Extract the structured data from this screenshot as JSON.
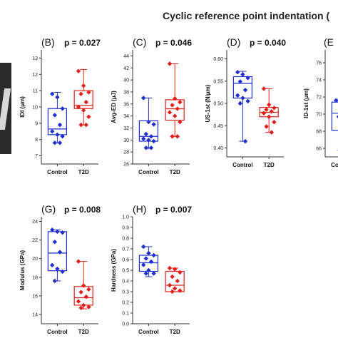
{
  "figure_title": "Cyclic reference point indentation (",
  "colors": {
    "control": "#1f2fd0",
    "t2d": "#e0201c",
    "axis": "#333333"
  },
  "chart_data": [
    {
      "panel": "(B)",
      "pvalue": "p = 0.027",
      "type": "box",
      "ylabel": "IDI (μm)",
      "ylim": [
        6.5,
        13.5
      ],
      "yticks": [
        7,
        8,
        9,
        10,
        11,
        12,
        13
      ],
      "categories": [
        "Control",
        "T2D"
      ],
      "series": [
        {
          "name": "Control",
          "box": {
            "q1": 8.3,
            "median": 8.65,
            "q3": 9.9,
            "min": 7.8,
            "max": 10.9
          },
          "points": [
            10.8,
            10.6,
            9.9,
            9.5,
            8.9,
            8.5,
            8.3,
            8.2,
            7.8,
            7.8
          ]
        },
        {
          "name": "T2D",
          "box": {
            "q1": 9.9,
            "median": 10.1,
            "q3": 11.0,
            "min": 8.9,
            "max": 12.3
          },
          "points": [
            12.2,
            11.3,
            10.9,
            10.8,
            10.3,
            10.0,
            9.8,
            9.4,
            8.9,
            8.9
          ]
        }
      ]
    },
    {
      "panel": "(C)",
      "pvalue": "p = 0.046",
      "type": "box",
      "ylabel": "Avg-ED (μJ)",
      "ylim": [
        26,
        45
      ],
      "yticks": [
        26,
        28,
        30,
        32,
        34,
        36,
        38,
        40,
        42,
        44
      ],
      "categories": [
        "Control",
        "T2D"
      ],
      "series": [
        {
          "name": "Control",
          "box": {
            "q1": 29.8,
            "median": 30.6,
            "q3": 33.2,
            "min": 28.6,
            "max": 37.0
          },
          "points": [
            37.0,
            33.0,
            32.6,
            31.0,
            30.6,
            30.2,
            30.0,
            29.8,
            28.7,
            28.7
          ]
        },
        {
          "name": "T2D",
          "box": {
            "q1": 33.3,
            "median": 35.2,
            "q3": 36.7,
            "min": 30.6,
            "max": 42.7
          },
          "points": [
            42.7,
            36.9,
            36.3,
            35.8,
            35.2,
            34.6,
            34.0,
            33.0,
            30.6,
            30.6
          ]
        }
      ]
    },
    {
      "panel": "(D)",
      "pvalue": "p = 0.040",
      "type": "box",
      "ylabel": "US-1st (N/μm)",
      "ylim": [
        0.38,
        0.62
      ],
      "yticks": [
        0.4,
        0.45,
        0.5,
        0.55,
        0.6
      ],
      "tickLabels": [
        "0.40",
        "0.45",
        "0.50",
        "0.55",
        "0.60"
      ],
      "categories": [
        "Control",
        "T2D"
      ],
      "series": [
        {
          "name": "Control",
          "box": {
            "q1": 0.512,
            "median": 0.545,
            "q3": 0.56,
            "min": 0.415,
            "max": 0.572
          },
          "points": [
            0.57,
            0.565,
            0.557,
            0.549,
            0.53,
            0.518,
            0.512,
            0.505,
            0.5,
            0.415
          ]
        },
        {
          "name": "T2D",
          "box": {
            "q1": 0.47,
            "median": 0.48,
            "q3": 0.491,
            "min": 0.435,
            "max": 0.533
          },
          "points": [
            0.533,
            0.497,
            0.49,
            0.486,
            0.482,
            0.478,
            0.47,
            0.458,
            0.448,
            0.435
          ]
        }
      ]
    },
    {
      "panel": "(E",
      "type": "box",
      "ylabel": "ID-1st (μm)",
      "ylim": [
        65.0,
        77.5
      ],
      "yticks": [
        66,
        68,
        70,
        72,
        74,
        76
      ],
      "categories": [
        "Control"
      ],
      "series": [
        {
          "name": "Control",
          "box": {
            "q1": 68.1,
            "median": 70.1,
            "q3": 71.4,
            "min": 65.8,
            "max": 71.8
          },
          "points": [
            71.6,
            71.6,
            70.6,
            69.7
          ]
        }
      ]
    },
    {
      "panel": "(G)",
      "pvalue": "p = 0.008",
      "type": "box",
      "ylabel": "Modulus (GPa)",
      "ylim": [
        13,
        24.5
      ],
      "yticks": [
        14,
        16,
        18,
        20,
        22,
        24
      ],
      "categories": [
        "Control",
        "T2D"
      ],
      "series": [
        {
          "name": "Control",
          "box": {
            "q1": 18.7,
            "median": 20.6,
            "q3": 22.9,
            "min": 17.6,
            "max": 23.1
          },
          "points": [
            23.1,
            22.9,
            22.8,
            21.8,
            20.7,
            19.3,
            18.9,
            18.6,
            17.6
          ]
        },
        {
          "name": "T2D",
          "box": {
            "q1": 15.0,
            "median": 15.8,
            "q3": 17.0,
            "min": 14.6,
            "max": 19.7
          },
          "points": [
            19.7,
            17.1,
            16.7,
            16.4,
            15.9,
            15.4,
            15.0,
            14.8,
            14.7
          ]
        }
      ]
    },
    {
      "panel": "(H)",
      "pvalue": "p = 0.007",
      "type": "box",
      "ylabel": "Hardness (GPa)",
      "ylim": [
        0.0,
        1.0
      ],
      "yticks": [
        0.0,
        0.1,
        0.2,
        0.3,
        0.4,
        0.5,
        0.6,
        0.7,
        0.8,
        0.9,
        1.0
      ],
      "tickLabels": [
        "0.0",
        "0.1",
        "0.2",
        "0.3",
        "0.4",
        "0.5",
        "0.6",
        "0.7",
        "0.8",
        "0.9",
        "1.0"
      ],
      "categories": [
        "Control",
        "T2D"
      ],
      "series": [
        {
          "name": "Control",
          "box": {
            "q1": 0.49,
            "median": 0.57,
            "q3": 0.64,
            "min": 0.44,
            "max": 0.72
          },
          "points": [
            0.72,
            0.66,
            0.64,
            0.61,
            0.58,
            0.55,
            0.5,
            0.47,
            0.47
          ]
        },
        {
          "name": "T2D",
          "box": {
            "q1": 0.3,
            "median": 0.36,
            "q3": 0.49,
            "min": 0.3,
            "max": 0.52
          },
          "points": [
            0.52,
            0.51,
            0.48,
            0.44,
            0.4,
            0.36,
            0.33,
            0.31,
            0.3
          ]
        }
      ]
    }
  ]
}
